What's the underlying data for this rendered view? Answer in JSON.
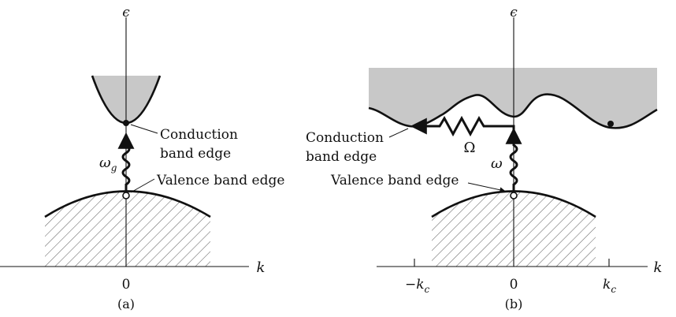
{
  "panel_a": {
    "axis_y_label": "ϵ",
    "axis_x_label": "k",
    "origin_label": "0",
    "caption": "(a)",
    "photon_label": "ω",
    "photon_sub": "g",
    "conduction_label_line1": "Conduction",
    "conduction_label_line2": "band edge",
    "valence_label": "Valence band edge"
  },
  "panel_b": {
    "axis_y_label": "ϵ",
    "axis_x_label": "k",
    "origin_label": "0",
    "neg_kc_label": "−k",
    "pos_kc_label": "k",
    "kc_sub": "c",
    "caption": "(b)",
    "photon_label": "ω",
    "phonon_label": "Ω",
    "conduction_label_line1": "Conduction",
    "conduction_label_line2": "band edge",
    "valence_label": "Valence band edge"
  },
  "colors": {
    "band_fill": "#c8c8c8",
    "line": "#111111",
    "hatch": "#555555"
  }
}
